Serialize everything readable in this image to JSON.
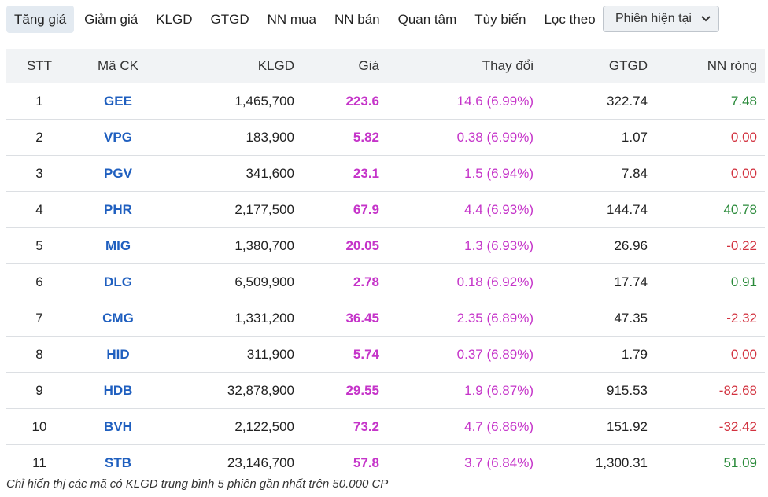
{
  "tabs": [
    {
      "label": "Tăng giá",
      "active": true
    },
    {
      "label": "Giảm giá",
      "active": false
    },
    {
      "label": "KLGD",
      "active": false
    },
    {
      "label": "GTGD",
      "active": false
    },
    {
      "label": "NN mua",
      "active": false
    },
    {
      "label": "NN bán",
      "active": false
    },
    {
      "label": "Quan tâm",
      "active": false
    },
    {
      "label": "Tùy biến",
      "active": false
    },
    {
      "label": "Lọc theo",
      "active": false
    }
  ],
  "select": "Phiên hiện tại",
  "table": {
    "columns": [
      "STT",
      "Mã CK",
      "KLGD",
      "Giá",
      "Thay đổi",
      "GTGD",
      "NN ròng"
    ],
    "rows": [
      [
        "1",
        "GEE",
        "1,465,700",
        "223.6",
        "14.6 (6.99%)",
        "322.74",
        "7.48"
      ],
      [
        "2",
        "VPG",
        "183,900",
        "5.82",
        "0.38 (6.99%)",
        "1.07",
        "0.00"
      ],
      [
        "3",
        "PGV",
        "341,600",
        "23.1",
        "1.5 (6.94%)",
        "7.84",
        "0.00"
      ],
      [
        "4",
        "PHR",
        "2,177,500",
        "67.9",
        "4.4 (6.93%)",
        "144.74",
        "40.78"
      ],
      [
        "5",
        "MIG",
        "1,380,700",
        "20.05",
        "1.3 (6.93%)",
        "26.96",
        "-0.22"
      ],
      [
        "6",
        "DLG",
        "6,509,900",
        "2.78",
        "0.18 (6.92%)",
        "17.74",
        "0.91"
      ],
      [
        "7",
        "CMG",
        "1,331,200",
        "36.45",
        "2.35 (6.89%)",
        "47.35",
        "-2.32"
      ],
      [
        "8",
        "HID",
        "311,900",
        "5.74",
        "0.37 (6.89%)",
        "1.79",
        "0.00"
      ],
      [
        "9",
        "HDB",
        "32,878,900",
        "29.55",
        "1.9 (6.87%)",
        "915.53",
        "-82.68"
      ],
      [
        "10",
        "BVH",
        "2,122,500",
        "73.2",
        "4.7 (6.86%)",
        "151.92",
        "-32.42"
      ],
      [
        "11",
        "STB",
        "23,146,700",
        "57.8",
        "3.7 (6.84%)",
        "1,300.31",
        "51.09"
      ]
    ]
  },
  "footnote": "Chỉ hiển thị các mã có KLGD trung bình 5 phiên gần nhất trên 50.000 CP"
}
